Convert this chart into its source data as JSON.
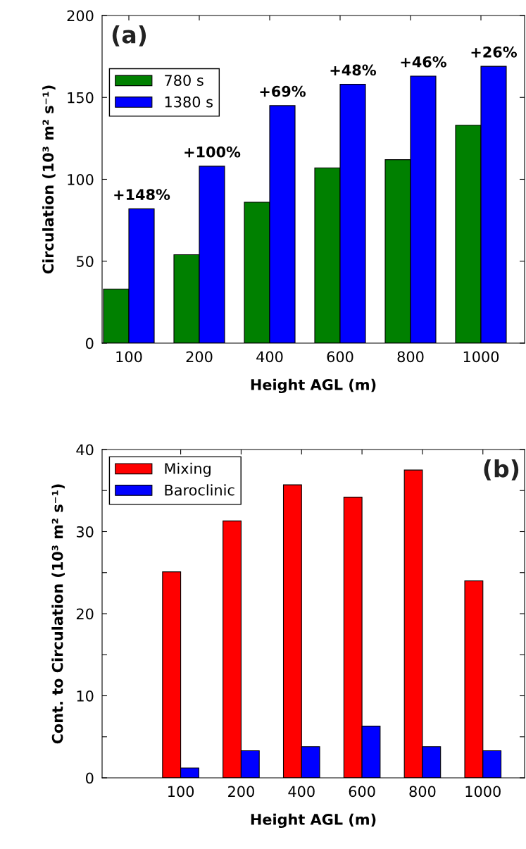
{
  "chart_data": [
    {
      "type": "bar",
      "title": "(a)",
      "xlabel": "Height AGL (m)",
      "ylabel": "Circulation (10³ m² s⁻¹)",
      "categories": [
        "100",
        "200",
        "400",
        "600",
        "800",
        "1000"
      ],
      "series": [
        {
          "name": "780 s",
          "color": "#008000",
          "values": [
            33,
            54,
            86,
            107,
            112,
            133
          ]
        },
        {
          "name": "1380 s",
          "color": "#0000ff",
          "values": [
            82,
            108,
            145,
            158,
            163,
            169
          ]
        }
      ],
      "ylim": [
        0,
        200
      ],
      "yticks": [
        0,
        50,
        100,
        150,
        200
      ],
      "legend": "top left",
      "grid": false,
      "annotations": [
        {
          "text": "+148%",
          "x": "100",
          "y": 82
        },
        {
          "text": "+100%",
          "x": "200",
          "y": 108
        },
        {
          "text": "+69%",
          "x": "400",
          "y": 145
        },
        {
          "text": "+48%",
          "x": "600",
          "y": 158
        },
        {
          "text": "+46%",
          "x": "800",
          "y": 163
        },
        {
          "text": "+26%",
          "x": "1000",
          "y": 169
        }
      ]
    },
    {
      "type": "bar",
      "title": "(b)",
      "xlabel": "Height AGL (m)",
      "ylabel": "Cont. to Circulation (10³ m² s⁻¹)",
      "categories": [
        "100",
        "200",
        "400",
        "600",
        "800",
        "1000"
      ],
      "series": [
        {
          "name": "Mixing",
          "color": "#ff0000",
          "values": [
            25.1,
            31.3,
            35.7,
            34.2,
            37.5,
            24.0
          ]
        },
        {
          "name": "Baroclinic",
          "color": "#0000ff",
          "values": [
            1.2,
            3.3,
            3.8,
            6.3,
            3.8,
            3.3
          ]
        }
      ],
      "ylim": [
        0,
        40
      ],
      "yticks": [
        0,
        {
          "value": 5,
          "label": null
        },
        10,
        {
          "value": 15,
          "label": null
        },
        20,
        {
          "value": 25,
          "label": null
        },
        30,
        {
          "value": 35,
          "label": null
        },
        40
      ],
      "legend": "top left",
      "grid": false
    }
  ]
}
